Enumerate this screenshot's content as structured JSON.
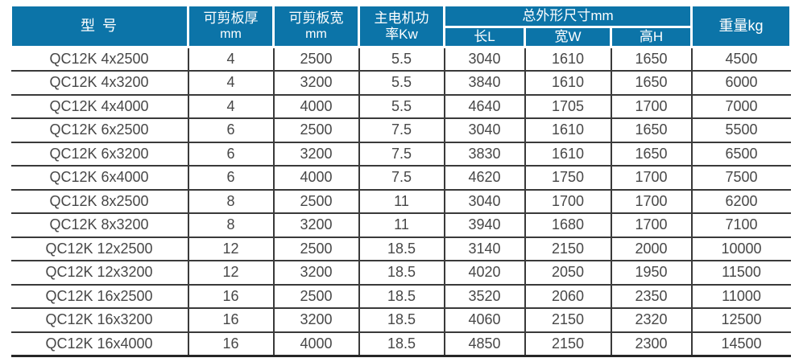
{
  "colors": {
    "header_bg": "#0c74a8",
    "header_text": "#ffffff",
    "grid_line": "#3a3a3a",
    "body_text": "#474747"
  },
  "table": {
    "header": {
      "model": "型 号",
      "thickness_line1": "可剪板厚",
      "thickness_line2": "mm",
      "width_line1": "可剪板宽",
      "width_line2": "mm",
      "power_line1": "主电机功",
      "power_line2": "率Kw",
      "dimensions_group": "总外形尺寸mm",
      "dim_length": "长L",
      "dim_width": "宽W",
      "dim_height": "高H",
      "weight": "重量kg"
    },
    "rows": [
      {
        "model": "QC12K 4x2500",
        "thickness": "4",
        "width": "2500",
        "power": "5.5",
        "length": "3040",
        "dim_w": "1610",
        "dim_h": "1650",
        "weight": "4500"
      },
      {
        "model": "QC12K 4x3200",
        "thickness": "4",
        "width": "3200",
        "power": "5.5",
        "length": "3840",
        "dim_w": "1610",
        "dim_h": "1650",
        "weight": "6000"
      },
      {
        "model": "QC12K 4x4000",
        "thickness": "4",
        "width": "4000",
        "power": "5.5",
        "length": "4640",
        "dim_w": "1705",
        "dim_h": "1700",
        "weight": "7000"
      },
      {
        "model": "QC12K 6x2500",
        "thickness": "6",
        "width": "2500",
        "power": "7.5",
        "length": "3040",
        "dim_w": "1610",
        "dim_h": "1650",
        "weight": "5500"
      },
      {
        "model": "QC12K 6x3200",
        "thickness": "6",
        "width": "3200",
        "power": "7.5",
        "length": "3830",
        "dim_w": "1610",
        "dim_h": "1650",
        "weight": "6500"
      },
      {
        "model": "QC12K 6x4000",
        "thickness": "6",
        "width": "4000",
        "power": "7.5",
        "length": "4620",
        "dim_w": "1750",
        "dim_h": "1700",
        "weight": "7500"
      },
      {
        "model": "QC12K 8x2500",
        "thickness": "8",
        "width": "2500",
        "power": "11",
        "length": "3040",
        "dim_w": "1700",
        "dim_h": "1700",
        "weight": "6200"
      },
      {
        "model": "QC12K 8x3200",
        "thickness": "8",
        "width": "3200",
        "power": "11",
        "length": "3940",
        "dim_w": "1680",
        "dim_h": "1700",
        "weight": "7100"
      },
      {
        "model": "QC12K 12x2500",
        "thickness": "12",
        "width": "2500",
        "power": "18.5",
        "length": "3140",
        "dim_w": "2150",
        "dim_h": "2000",
        "weight": "10000"
      },
      {
        "model": "QC12K 12x3200",
        "thickness": "12",
        "width": "3200",
        "power": "18.5",
        "length": "4020",
        "dim_w": "2050",
        "dim_h": "1950",
        "weight": "11500"
      },
      {
        "model": "QC12K 16x2500",
        "thickness": "16",
        "width": "2500",
        "power": "18.5",
        "length": "3520",
        "dim_w": "2060",
        "dim_h": "2350",
        "weight": "11000"
      },
      {
        "model": "QC12K 16x3200",
        "thickness": "16",
        "width": "3200",
        "power": "18.5",
        "length": "4060",
        "dim_w": "2150",
        "dim_h": "2320",
        "weight": "12500"
      },
      {
        "model": "QC12K 16x4000",
        "thickness": "16",
        "width": "4000",
        "power": "18.5",
        "length": "4850",
        "dim_w": "2150",
        "dim_h": "2300",
        "weight": "14500"
      }
    ]
  }
}
